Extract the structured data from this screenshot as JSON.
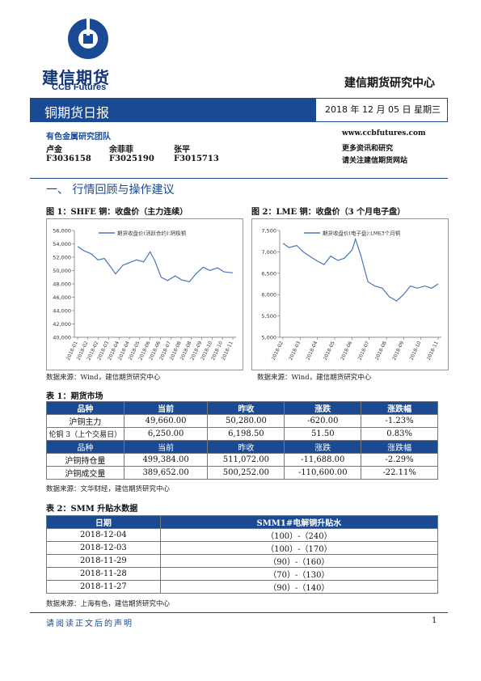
{
  "header": {
    "brand_cn": "建信期货",
    "brand_en": "CCB Futures",
    "center_title": "建信期货研究中心",
    "report_title": "铜期货日报",
    "date_line": "2018 年 12 月 05 日  星期三",
    "brand_color": "#1a4a93"
  },
  "team": {
    "label": "有色金属研究团队",
    "members": [
      {
        "name": "卢金",
        "id": "F3036158"
      },
      {
        "name": "余菲菲",
        "id": "F3025190"
      },
      {
        "name": "张平",
        "id": "F3015713"
      }
    ],
    "website": "www.ccbfutures.com",
    "more_line": "更多资讯和研究",
    "follow_line": "请关注建信期货网站"
  },
  "section1": {
    "title": "一、  行情回顾与操作建议"
  },
  "figures": {
    "fig1_title": "图 1：SHFE 铜：收盘价（主力连续）",
    "fig1_source": "数据来源：Wind，建信期货研究中心",
    "fig2_title": "图 2：LME 铜：收盘价（3 个月电子盘）",
    "fig2_source": "数据来源：Wind，建信期货研究中心"
  },
  "chart_data": [
    {
      "type": "line",
      "legend": "期货收盘价(活跃合约):阴极铜",
      "ylim": [
        40000,
        56000
      ],
      "y_ticks": [
        "56,000",
        "54,000",
        "52,000",
        "50,000",
        "48,000",
        "46,000",
        "44,000",
        "42,000",
        "40,000"
      ],
      "x_ticks": [
        "2018-01",
        "2018-02",
        "2018-02",
        "2018-03",
        "2018-04",
        "2018-04",
        "2018-05",
        "2018-06",
        "2018-06",
        "2018-07",
        "2018-08",
        "2018-08",
        "2018-09",
        "2018-10",
        "2018-10",
        "2018-11"
      ],
      "x": [
        "2018-01-02",
        "2018-01-15",
        "2018-02-01",
        "2018-02-15",
        "2018-03-01",
        "2018-03-15",
        "2018-03-25",
        "2018-04-10",
        "2018-04-25",
        "2018-05-10",
        "2018-05-25",
        "2018-06-08",
        "2018-06-18",
        "2018-07-02",
        "2018-07-16",
        "2018-08-01",
        "2018-08-15",
        "2018-09-01",
        "2018-09-15",
        "2018-10-01",
        "2018-10-15",
        "2018-11-01",
        "2018-11-15",
        "2018-12-04"
      ],
      "values": [
        53600,
        53000,
        52500,
        51600,
        51800,
        50500,
        49500,
        50800,
        51200,
        51600,
        51300,
        52800,
        51500,
        49000,
        48500,
        49200,
        48600,
        48300,
        49500,
        50500,
        50000,
        50400,
        49800,
        49660
      ]
    },
    {
      "type": "line",
      "legend": "期货收盘价(电子盘):LME3个月铜",
      "ylim": [
        5000,
        7500
      ],
      "y_ticks": [
        "7,500",
        "7,000",
        "6,500",
        "6,000",
        "5,500",
        "5,000"
      ],
      "x_ticks": [
        "2018-02",
        "2018-03",
        "2018-04",
        "2018-05",
        "2018-06",
        "2018-07",
        "2018-08",
        "2018-09",
        "2018-10",
        "2018-11"
      ],
      "x": [
        "2018-01-02",
        "2018-01-15",
        "2018-02-01",
        "2018-02-15",
        "2018-03-01",
        "2018-03-15",
        "2018-04-01",
        "2018-04-15",
        "2018-05-01",
        "2018-05-15",
        "2018-06-01",
        "2018-06-08",
        "2018-06-20",
        "2018-07-05",
        "2018-07-20",
        "2018-08-05",
        "2018-08-20",
        "2018-09-05",
        "2018-09-20",
        "2018-10-05",
        "2018-10-20",
        "2018-11-05",
        "2018-11-20",
        "2018-12-04"
      ],
      "values": [
        7200,
        7100,
        7150,
        7000,
        6900,
        6800,
        6700,
        6900,
        6800,
        6850,
        7050,
        7300,
        6900,
        6300,
        6200,
        6150,
        5950,
        5850,
        6000,
        6200,
        6150,
        6200,
        6150,
        6250
      ]
    }
  ],
  "table1": {
    "title": "表 1：期货市场",
    "header": [
      "品种",
      "当前",
      "昨收",
      "涨跌",
      "涨跌幅"
    ],
    "rows": [
      [
        "沪铜主力",
        "49,660.00",
        "50,280.00",
        "-620.00",
        "-1.23%"
      ],
      [
        "伦铜 3（上个交易日）",
        "6,250.00",
        "6,198.50",
        "51.50",
        "0.83%"
      ]
    ],
    "header2": [
      "品种",
      "当前",
      "昨收",
      "涨跌",
      "涨跌幅"
    ],
    "rows2": [
      [
        "沪铜持仓量",
        "499,384.00",
        "511,072.00",
        "-11,688.00",
        "-2.29%"
      ],
      [
        "沪铜成交量",
        "389,652.00",
        "500,252.00",
        "-110,600.00",
        "-22.11%"
      ]
    ],
    "source": "数据来源：文华财经，建信期货研究中心"
  },
  "table2": {
    "title": "表 2：SMM 升贴水数据",
    "header": [
      "日期",
      "SMM1#电解铜升贴水"
    ],
    "rows": [
      [
        "2018-12-04",
        "（100）-（240）"
      ],
      [
        "2018-12-03",
        "（100）-（170）"
      ],
      [
        "2018-11-29",
        "（90）-（160）"
      ],
      [
        "2018-11-28",
        "（70）-（130）"
      ],
      [
        "2018-11-27",
        "（90）-（140）"
      ]
    ],
    "source": "数据来源：上海有色，建信期货研究中心"
  },
  "footer": {
    "disclaimer": "请阅读正文后的声明",
    "page": "1"
  }
}
